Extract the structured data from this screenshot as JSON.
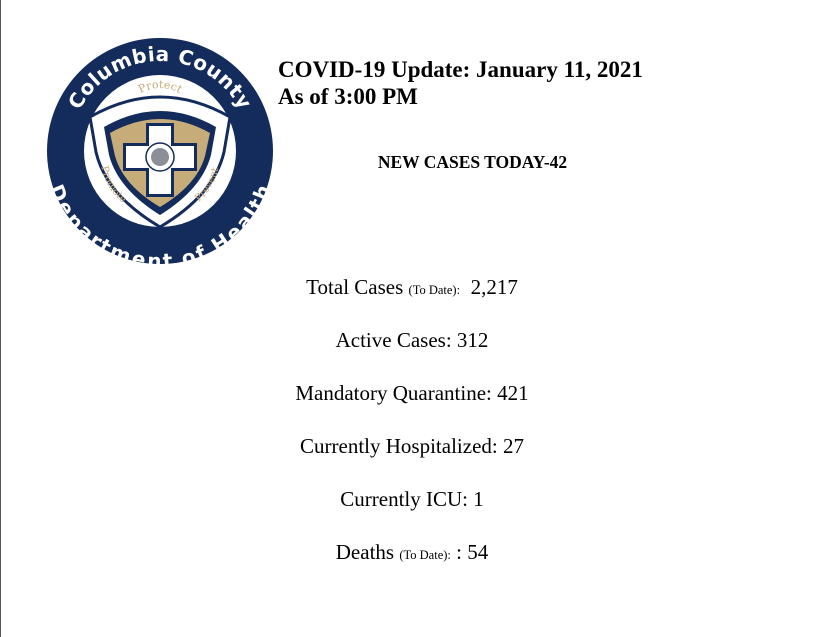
{
  "logo": {
    "top_text": "Columbia County",
    "bottom_text": "Department of Health",
    "protect": "Protect",
    "promote": "Promote",
    "prevent": "Prevent",
    "colors": {
      "navy": "#132c5c",
      "tan": "#c6ac79",
      "white": "#ffffff"
    }
  },
  "header": {
    "title_line1": "COVID-19 Update: January 11, 2021",
    "title_line2": "As of 3:00 PM"
  },
  "new_cases": "NEW CASES TODAY-42",
  "stats": {
    "total_label": "Total Cases ",
    "total_note": "(To Date):",
    "total_value": "  2,217",
    "active": "Active Cases: 312",
    "quarantine": "Mandatory Quarantine: 421",
    "hospitalized": "Currently Hospitalized: 27",
    "icu": "Currently ICU: 1",
    "deaths_label": "Deaths ",
    "deaths_note": "(To Date):",
    "deaths_value": " : 54"
  }
}
